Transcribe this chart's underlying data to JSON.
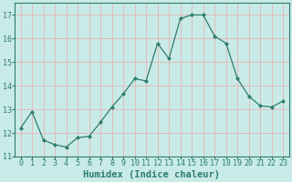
{
  "x": [
    0,
    1,
    2,
    3,
    4,
    5,
    6,
    7,
    8,
    9,
    10,
    11,
    12,
    13,
    14,
    15,
    16,
    17,
    18,
    19,
    20,
    21,
    22,
    23
  ],
  "y": [
    12.2,
    12.9,
    11.7,
    11.5,
    11.4,
    11.8,
    11.85,
    12.45,
    13.1,
    13.65,
    14.3,
    14.2,
    15.8,
    15.15,
    16.85,
    17.0,
    17.0,
    16.1,
    15.8,
    14.3,
    13.55,
    13.15,
    13.1,
    13.35
  ],
  "line_color": "#2e7d6b",
  "marker": "D",
  "marker_size": 2.2,
  "bg_color": "#c8ebe8",
  "grid_color_major": "#e8b4b0",
  "grid_color_minor": "#d6e8e6",
  "xlabel": "Humidex (Indice chaleur)",
  "ylim": [
    11,
    17.5
  ],
  "xlim": [
    -0.5,
    23.5
  ],
  "yticks": [
    11,
    12,
    13,
    14,
    15,
    16,
    17
  ],
  "xticks": [
    0,
    1,
    2,
    3,
    4,
    5,
    6,
    7,
    8,
    9,
    10,
    11,
    12,
    13,
    14,
    15,
    16,
    17,
    18,
    19,
    20,
    21,
    22,
    23
  ],
  "tick_color": "#2e7d6b",
  "label_fontsize": 6,
  "xlabel_fontsize": 7.5
}
